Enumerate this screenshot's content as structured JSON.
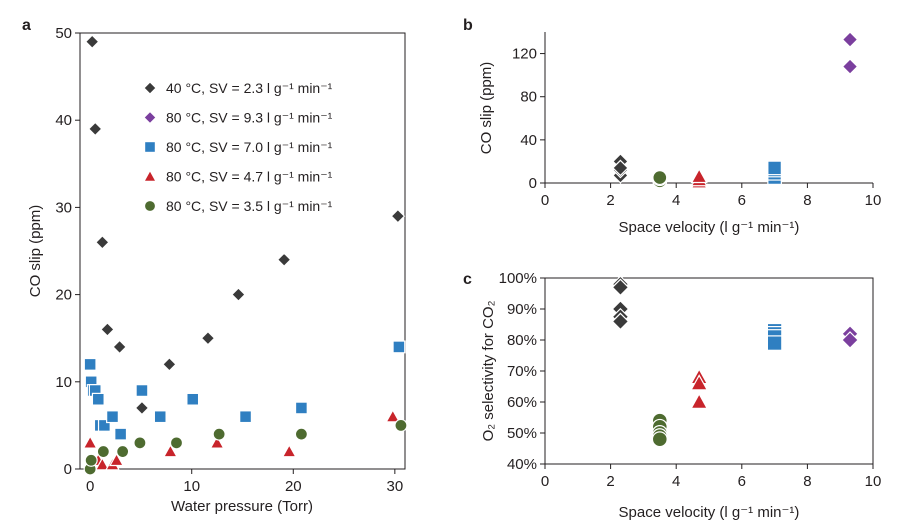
{
  "series_styles": [
    {
      "id": "s40",
      "name": "40 °C, SV = 2.3 l g⁻¹ min⁻¹",
      "shape": "diamond",
      "color": "#3a3a3a"
    },
    {
      "id": "s93",
      "name": "80 °C, SV = 9.3 l g⁻¹ min⁻¹",
      "shape": "diamond",
      "color": "#7b3f9e"
    },
    {
      "id": "s70",
      "name": "80 °C, SV = 7.0 l g⁻¹ min⁻¹",
      "shape": "square",
      "color": "#2f7fc1"
    },
    {
      "id": "s47",
      "name": "80 °C, SV = 4.7 l g⁻¹ min⁻¹",
      "shape": "triangle",
      "color": "#c8242b"
    },
    {
      "id": "s35",
      "name": "80 °C, SV = 3.5 l g⁻¹ min⁻¹",
      "shape": "circle",
      "color": "#4e6b30"
    }
  ],
  "chart_data": [
    {
      "panel": "a",
      "type": "scatter",
      "title": "",
      "xlabel": "Water pressure (Torr)",
      "ylabel": "CO slip (ppm)",
      "xlim": [
        -1,
        31
      ],
      "ylim": [
        0,
        50
      ],
      "xticks": [
        0,
        10,
        20,
        30
      ],
      "yticks": [
        0,
        10,
        20,
        30,
        40,
        50
      ],
      "legend_position": "top-right",
      "series": [
        {
          "id": "s40",
          "x": [
            0.2,
            0.5,
            1.2,
            1.7,
            2.9,
            5.1,
            7.8,
            11.6,
            14.6,
            19.1,
            30.3
          ],
          "y": [
            49,
            39,
            26,
            16,
            14,
            7,
            12,
            15,
            20,
            24,
            29
          ]
        },
        {
          "id": "s70",
          "x": [
            0.0,
            0.1,
            0.3,
            0.5,
            0.8,
            1.0,
            1.4,
            2.2,
            3.0,
            5.1,
            6.9,
            10.1,
            15.3,
            20.8,
            30.4
          ],
          "y": [
            12,
            10,
            9,
            9,
            8,
            5,
            5,
            6,
            4,
            9,
            6,
            8,
            6,
            7,
            14
          ]
        },
        {
          "id": "s47",
          "x": [
            0.0,
            0.8,
            1.2,
            2.2,
            2.6,
            7.9,
            12.5,
            19.6,
            29.8
          ],
          "y": [
            3,
            1,
            0.5,
            0.5,
            1,
            2,
            3,
            2,
            6
          ]
        },
        {
          "id": "s35",
          "x": [
            0.0,
            0.1,
            1.3,
            3.2,
            4.9,
            8.5,
            12.7,
            20.8,
            30.6
          ],
          "y": [
            0,
            1,
            2,
            2,
            3,
            3,
            4,
            4,
            5
          ]
        }
      ]
    },
    {
      "panel": "b",
      "type": "scatter",
      "title": "",
      "xlabel": "Space velocity (l g⁻¹ min⁻¹)",
      "ylabel": "CO slip (ppm)",
      "xlim": [
        0,
        10
      ],
      "ylim": [
        0,
        140
      ],
      "xticks": [
        0,
        2,
        4,
        6,
        8,
        10
      ],
      "yticks": [
        0,
        40,
        80,
        120
      ],
      "series": [
        {
          "id": "s40",
          "x": [
            2.3,
            2.3,
            2.3,
            2.3,
            2.3
          ],
          "y": [
            7,
            12,
            15,
            20,
            14
          ]
        },
        {
          "id": "s93",
          "x": [
            9.3,
            9.3
          ],
          "y": [
            133,
            108
          ]
        },
        {
          "id": "s70",
          "x": [
            7.0,
            7.0,
            7.0,
            7.0
          ],
          "y": [
            5,
            9,
            12,
            14
          ]
        },
        {
          "id": "s47",
          "x": [
            4.7,
            4.7,
            4.7
          ],
          "y": [
            1,
            3,
            6
          ]
        },
        {
          "id": "s35",
          "x": [
            3.5,
            3.5,
            3.5
          ],
          "y": [
            2,
            4,
            5
          ]
        }
      ]
    },
    {
      "panel": "c",
      "type": "scatter",
      "title": "",
      "xlabel": "Space velocity (l g⁻¹ min⁻¹)",
      "ylabel": "O₂ selectivity for CO₂",
      "xlim": [
        0,
        10
      ],
      "ylim": [
        40,
        100
      ],
      "xticks": [
        0,
        2,
        4,
        6,
        8,
        10
      ],
      "yticks": [
        40,
        50,
        60,
        70,
        80,
        90,
        100
      ],
      "ytick_format": "percent",
      "series": [
        {
          "id": "s40",
          "x": [
            2.3,
            2.3,
            2.3,
            2.3,
            2.3
          ],
          "y": [
            98,
            97,
            90,
            87.5,
            86
          ]
        },
        {
          "id": "s93",
          "x": [
            9.3,
            9.3
          ],
          "y": [
            82,
            80
          ]
        },
        {
          "id": "s70",
          "x": [
            7.0,
            7.0,
            7.0,
            7.0
          ],
          "y": [
            83,
            82,
            81,
            79
          ]
        },
        {
          "id": "s47",
          "x": [
            4.7,
            4.7,
            4.7
          ],
          "y": [
            68,
            66,
            60
          ]
        },
        {
          "id": "s35",
          "x": [
            3.5,
            3.5,
            3.5,
            3.5,
            3.5
          ],
          "y": [
            54,
            52,
            50,
            49,
            48
          ]
        }
      ]
    }
  ]
}
